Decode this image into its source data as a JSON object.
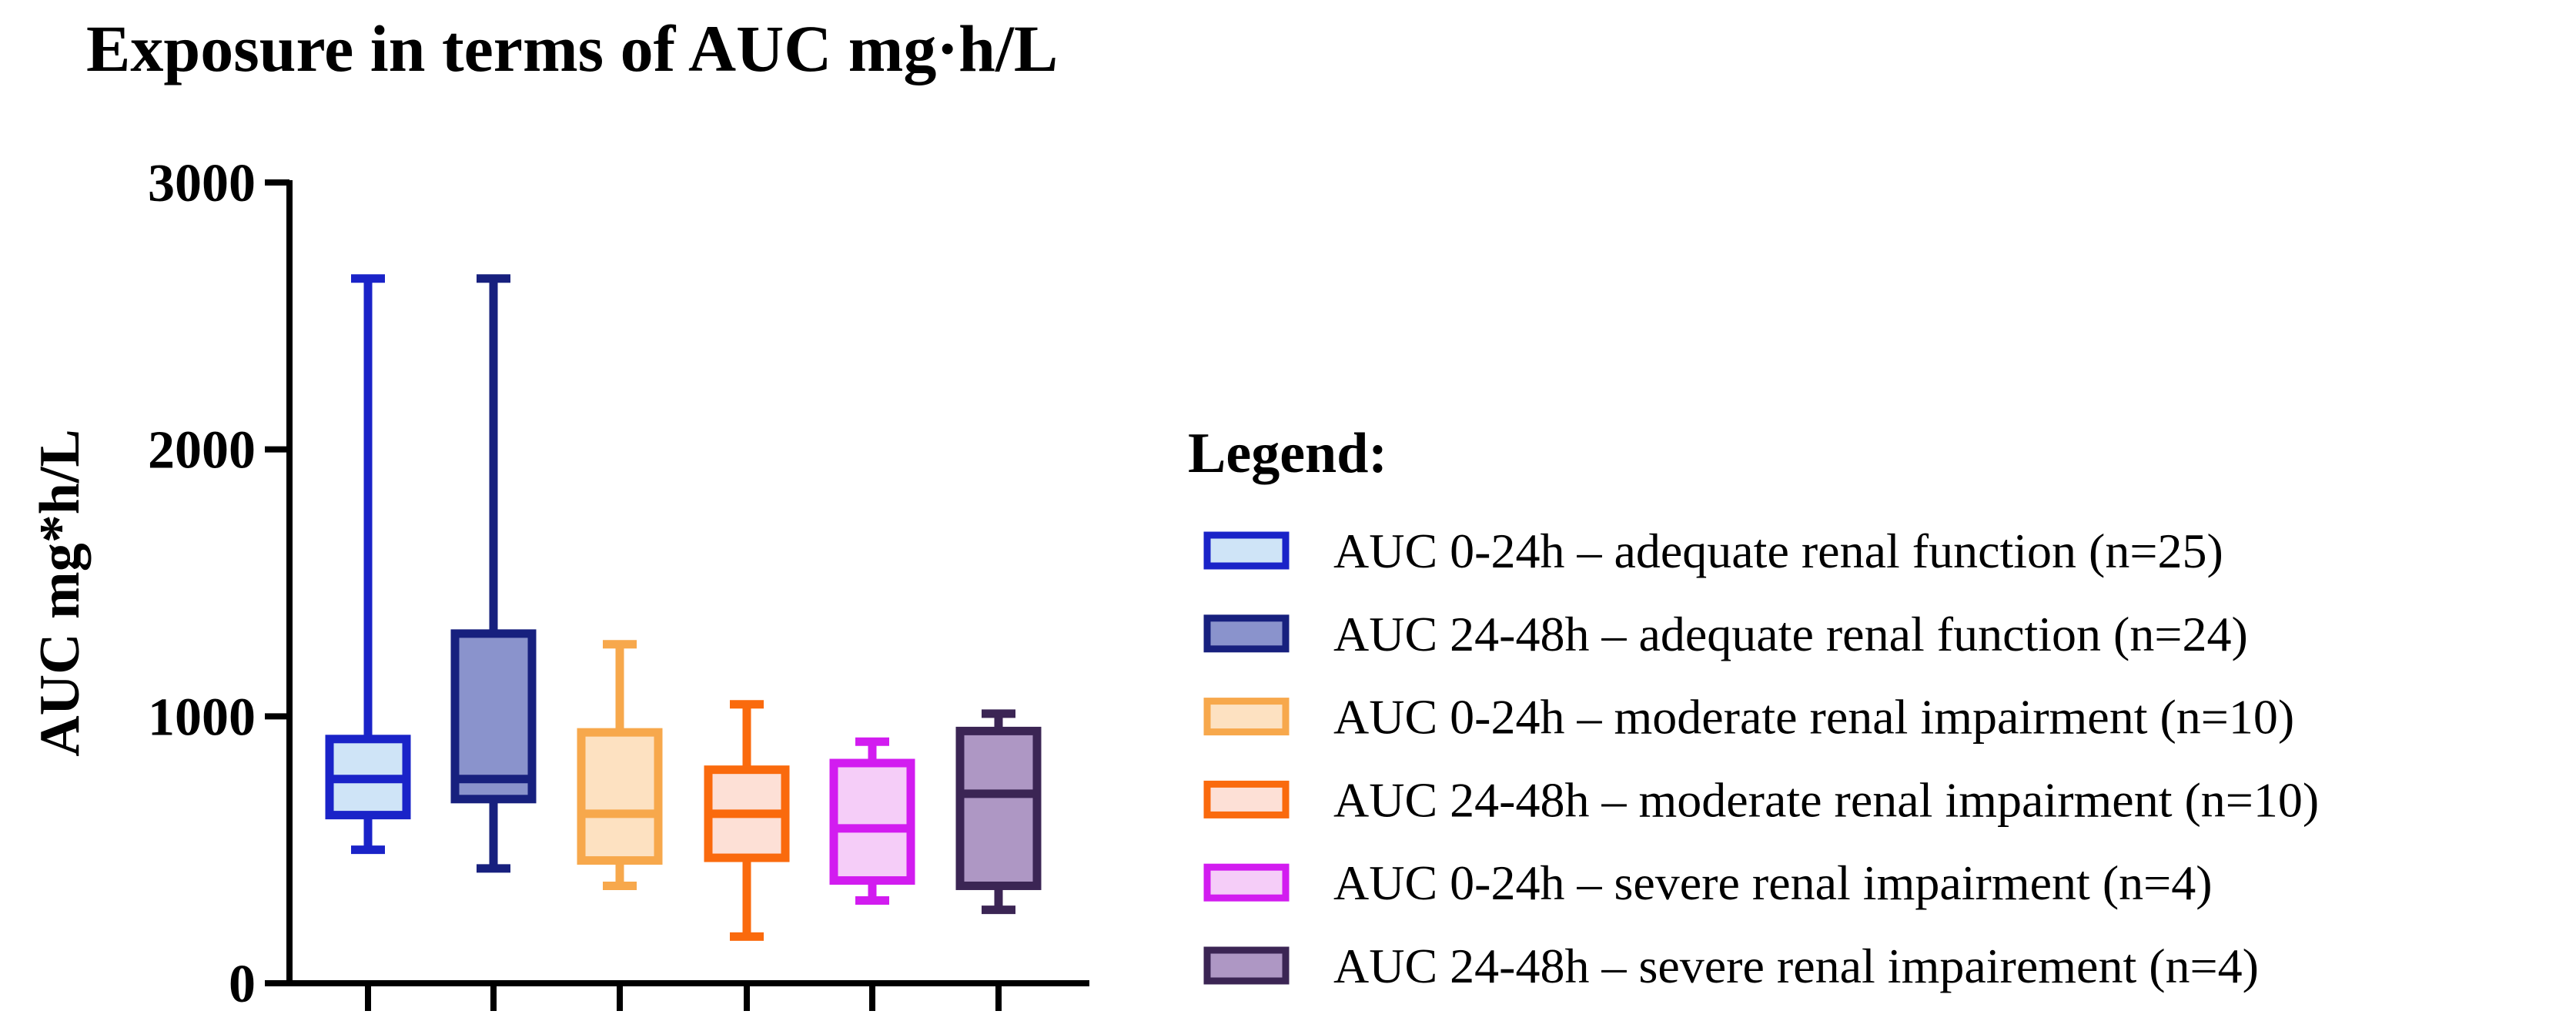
{
  "chart_data": {
    "type": "boxplot",
    "title": "Exposure in terms of AUC mg·h/L",
    "ylabel": "AUC mg*h/L",
    "xlabel": "",
    "ylim": [
      0,
      3000
    ],
    "yticks": [
      0,
      1000,
      2000,
      3000
    ],
    "ytick_labels": [
      "0",
      "1000",
      "2000",
      "3000"
    ],
    "grid": false,
    "legend_title": "Legend:",
    "legend_position": "right",
    "series": [
      {
        "name": "AUC 0-24h – adequate renal function (n=25)",
        "min": 500,
        "q1": 630,
        "median": 765,
        "q3": 915,
        "max": 2640,
        "stroke": "#1a23c8",
        "fill": "#cfe4f7"
      },
      {
        "name": "AUC 24-48h – adequate renal function (n=24)",
        "min": 430,
        "q1": 690,
        "median": 765,
        "q3": 1310,
        "max": 2640,
        "stroke": "#17207e",
        "fill": "#8a93cc"
      },
      {
        "name": "AUC 0-24h – moderate renal impairment (n=10)",
        "min": 365,
        "q1": 460,
        "median": 635,
        "q3": 940,
        "max": 1270,
        "stroke": "#f7a84c",
        "fill": "#fde1c1"
      },
      {
        "name": "AUC 24-48h – moderate renal impairment (n=10)",
        "min": 175,
        "q1": 470,
        "median": 635,
        "q3": 800,
        "max": 1045,
        "stroke": "#fa6a0d",
        "fill": "#fde0d6"
      },
      {
        "name": "AUC 0-24h – severe renal impairment (n=4)",
        "min": 310,
        "q1": 385,
        "median": 580,
        "q3": 825,
        "max": 905,
        "stroke": "#d21cf0",
        "fill": "#f5cdf8"
      },
      {
        "name": "AUC 24-48h – severe renal impairement (n=4)",
        "min": 275,
        "q1": 365,
        "median": 710,
        "q3": 945,
        "max": 1010,
        "stroke": "#3b2554",
        "fill": "#ae97c4"
      }
    ]
  }
}
